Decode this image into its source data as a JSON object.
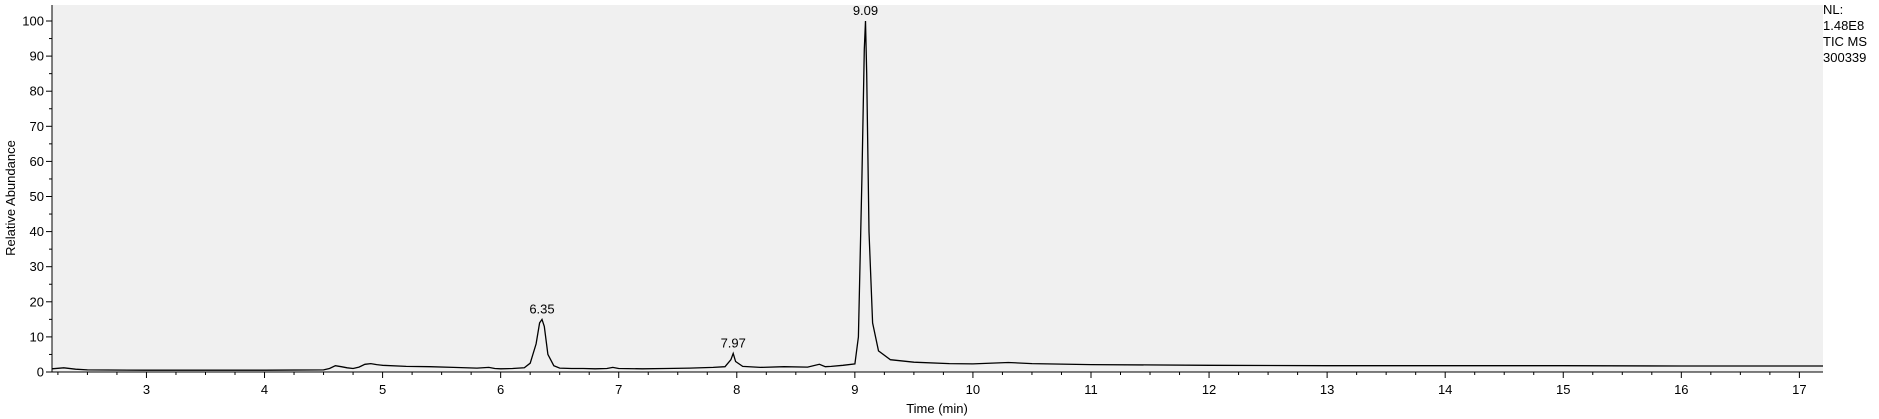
{
  "chart_data": {
    "type": "line",
    "xlabel": "Time (min)",
    "ylabel": "Relative Abundance",
    "xlim": [
      2.2,
      17.2
    ],
    "ylim": [
      0,
      103
    ],
    "x_ticks": [
      3,
      4,
      5,
      6,
      7,
      8,
      9,
      10,
      11,
      12,
      13,
      14,
      15,
      16,
      17
    ],
    "y_ticks": [
      0,
      10,
      20,
      30,
      40,
      50,
      60,
      70,
      80,
      90,
      100
    ],
    "grid": false,
    "background": "#f0f0f0",
    "line_color": "#000000",
    "peak_labels": [
      {
        "x": 6.35,
        "y": 15,
        "text": "6.35"
      },
      {
        "x": 7.97,
        "y": 5.3,
        "text": "7.97"
      },
      {
        "x": 9.09,
        "y": 100,
        "text": "9.09"
      }
    ],
    "series": [
      {
        "x": [
          2.2,
          2.3,
          2.4,
          2.5,
          3.0,
          3.5,
          4.0,
          4.5,
          4.55,
          4.6,
          4.65,
          4.7,
          4.75,
          4.8,
          4.85,
          4.9,
          4.95,
          5.0,
          5.2,
          5.4,
          5.6,
          5.8,
          5.9,
          5.95,
          6.0,
          6.1,
          6.2,
          6.25,
          6.3,
          6.33,
          6.35,
          6.37,
          6.4,
          6.45,
          6.5,
          6.6,
          6.7,
          6.8,
          6.9,
          6.95,
          7.0,
          7.2,
          7.4,
          7.6,
          7.8,
          7.9,
          7.95,
          7.97,
          7.99,
          8.05,
          8.2,
          8.4,
          8.6,
          8.7,
          8.75,
          8.8,
          8.9,
          9.0,
          9.03,
          9.06,
          9.08,
          9.09,
          9.1,
          9.12,
          9.15,
          9.2,
          9.3,
          9.5,
          9.8,
          10.0,
          10.3,
          10.5,
          11.0,
          12.0,
          13.0,
          14.0,
          15.0,
          16.0,
          17.0,
          17.2
        ],
        "y": [
          0.9,
          1.2,
          0.8,
          0.6,
          0.5,
          0.5,
          0.5,
          0.6,
          1.0,
          1.8,
          1.5,
          1.2,
          1.0,
          1.4,
          2.2,
          2.4,
          2.1,
          1.9,
          1.6,
          1.5,
          1.3,
          1.1,
          1.3,
          1.0,
          0.9,
          1.0,
          1.2,
          2.5,
          8.0,
          14.0,
          15.0,
          13.0,
          5.0,
          1.8,
          1.1,
          1.0,
          1.0,
          0.9,
          1.0,
          1.3,
          1.0,
          0.9,
          1.0,
          1.1,
          1.3,
          1.5,
          3.5,
          5.3,
          3.0,
          1.6,
          1.3,
          1.5,
          1.4,
          2.2,
          1.5,
          1.6,
          1.9,
          2.3,
          10.0,
          55.0,
          92.0,
          100.0,
          85.0,
          40.0,
          14.0,
          6.0,
          3.5,
          2.8,
          2.4,
          2.3,
          2.7,
          2.4,
          2.1,
          1.9,
          1.8,
          1.8,
          1.8,
          1.7,
          1.7,
          1.7
        ]
      }
    ]
  },
  "side_info": {
    "line1": "NL:",
    "line2": "1.48E8",
    "line3": "TIC  MS",
    "line4": "300339"
  }
}
